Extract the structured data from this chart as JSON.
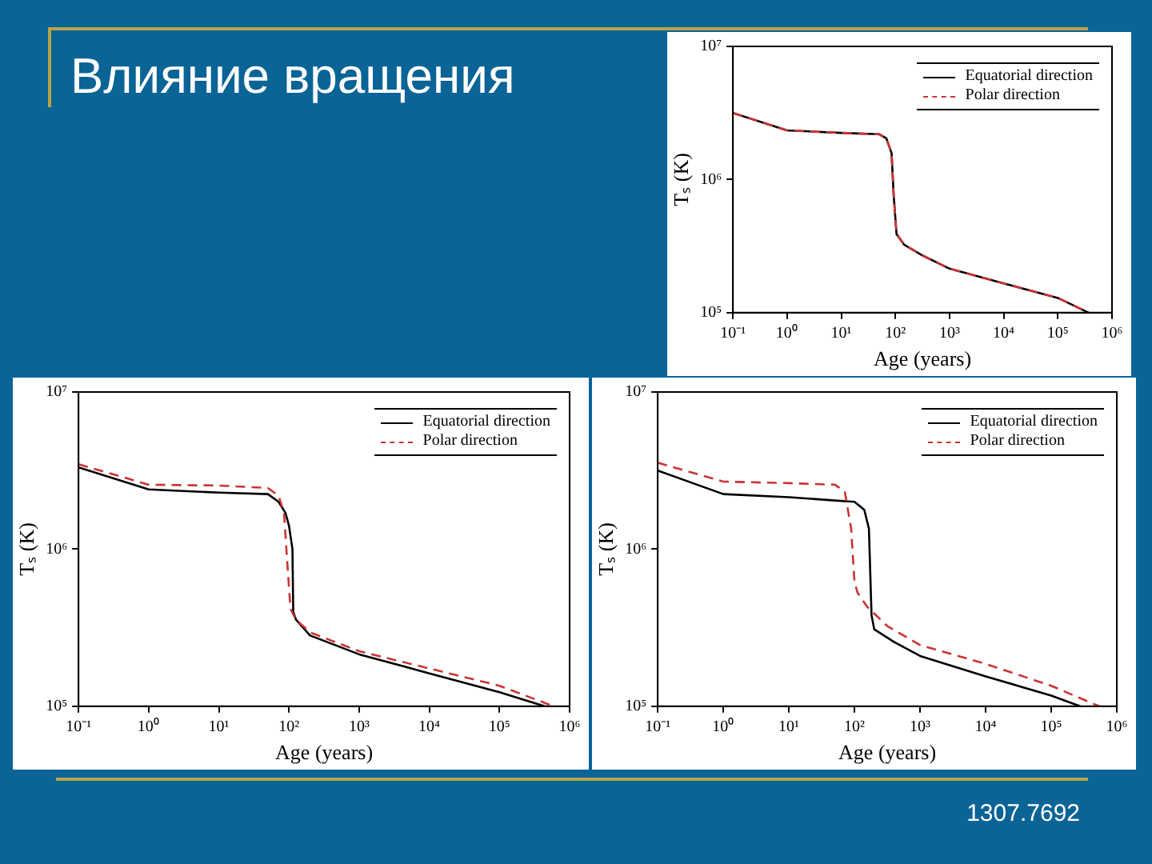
{
  "chart_data": [
    {
      "type": "line",
      "title": "Влияние вращения",
      "xlabel": "Age (years)",
      "ylabel": "Tₛ (K)",
      "log": "xy",
      "xlim": [
        0.1,
        1000000
      ],
      "ylim": [
        100000,
        10000000
      ],
      "xticks": [
        {
          "value": 0.1,
          "label": "10⁻¹"
        },
        {
          "value": 1,
          "label": "10⁰"
        },
        {
          "value": 10,
          "label": "10¹"
        },
        {
          "value": 100,
          "label": "10²"
        },
        {
          "value": 1000,
          "label": "10³"
        },
        {
          "value": 10000,
          "label": "10⁴"
        },
        {
          "value": 100000,
          "label": "10⁵"
        },
        {
          "value": 1000000,
          "label": "10⁶"
        }
      ],
      "yticks": [
        {
          "value": 100000,
          "label": "10⁵"
        },
        {
          "value": 1000000,
          "label": "10⁶"
        },
        {
          "value": 10000000,
          "label": "10⁷"
        }
      ],
      "grid": false,
      "legend": "top right",
      "series": [
        {
          "name": "Equatorial direction",
          "color": "#000000",
          "line_style": "solid",
          "x": [
            0.1,
            1,
            10,
            50,
            68,
            85,
            93,
            105,
            145,
            316,
            1000,
            10000,
            100000,
            370000
          ],
          "values": [
            3160000,
            2340000,
            2240000,
            2190000,
            2040000,
            1580000,
            759000,
            389000,
            324000,
            269000,
            214000,
            166000,
            129000,
            100000
          ]
        },
        {
          "name": "Polar direction",
          "color": "#cc3333",
          "line_style": "dashed",
          "x": [
            0.1,
            1,
            10,
            50,
            68,
            85,
            93,
            105,
            145,
            316,
            1000,
            10000,
            100000,
            370000
          ],
          "values": [
            3160000,
            2340000,
            2240000,
            2190000,
            2040000,
            1580000,
            759000,
            389000,
            324000,
            269000,
            214000,
            166000,
            129000,
            100000
          ]
        }
      ]
    },
    {
      "type": "line",
      "xlabel": "Age (years)",
      "ylabel": "Tₛ (K)",
      "log": "xy",
      "xlim": [
        0.1,
        1000000
      ],
      "ylim": [
        100000,
        10000000
      ],
      "xticks": [
        {
          "value": 0.1,
          "label": "10⁻¹"
        },
        {
          "value": 1,
          "label": "10⁰"
        },
        {
          "value": 10,
          "label": "10¹"
        },
        {
          "value": 100,
          "label": "10²"
        },
        {
          "value": 1000,
          "label": "10³"
        },
        {
          "value": 10000,
          "label": "10⁴"
        },
        {
          "value": 100000,
          "label": "10⁵"
        },
        {
          "value": 1000000,
          "label": "10⁶"
        }
      ],
      "yticks": [
        {
          "value": 100000,
          "label": "10⁵"
        },
        {
          "value": 1000000,
          "label": "10⁶"
        },
        {
          "value": 10000000,
          "label": "10⁷"
        }
      ],
      "grid": false,
      "legend": "top right",
      "series": [
        {
          "name": "Equatorial direction",
          "color": "#000000",
          "line_style": "solid",
          "x": [
            0.1,
            1,
            10,
            50,
            71,
            89,
            100,
            112,
            115,
            126,
            200,
            1000,
            10000,
            100000,
            440000
          ],
          "values": [
            3310000,
            2400000,
            2290000,
            2240000,
            2000000,
            1700000,
            1410000,
            1000000,
            398000,
            355000,
            282000,
            214000,
            162000,
            123000,
            100000
          ]
        },
        {
          "name": "Polar direction",
          "color": "#cc3333",
          "line_style": "dashed",
          "x": [
            0.1,
            1,
            10,
            50,
            71,
            85,
            93,
            105,
            126,
            200,
            1000,
            10000,
            100000,
            590000
          ],
          "values": [
            3470000,
            2570000,
            2540000,
            2450000,
            2190000,
            1700000,
            912000,
            417000,
            355000,
            295000,
            224000,
            174000,
            135000,
            100000
          ]
        }
      ]
    },
    {
      "type": "line",
      "xlabel": "Age (years)",
      "ylabel": "Tₛ (K)",
      "log": "xy",
      "xlim": [
        0.1,
        1000000
      ],
      "ylim": [
        100000,
        10000000
      ],
      "xticks": [
        {
          "value": 0.1,
          "label": "10⁻¹"
        },
        {
          "value": 1,
          "label": "10⁰"
        },
        {
          "value": 10,
          "label": "10¹"
        },
        {
          "value": 100,
          "label": "10²"
        },
        {
          "value": 1000,
          "label": "10³"
        },
        {
          "value": 10000,
          "label": "10⁴"
        },
        {
          "value": 100000,
          "label": "10⁵"
        },
        {
          "value": 1000000,
          "label": "10⁶"
        }
      ],
      "yticks": [
        {
          "value": 100000,
          "label": "10⁵"
        },
        {
          "value": 1000000,
          "label": "10⁶"
        },
        {
          "value": 10000000,
          "label": "10⁷"
        }
      ],
      "grid": false,
      "legend": "top right",
      "annotations": [
        "1307.7692"
      ],
      "series": [
        {
          "name": "Equatorial direction",
          "color": "#000000",
          "line_style": "solid",
          "x": [
            0.1,
            1,
            10,
            50,
            100,
            141,
            166,
            182,
            200,
            400,
            1000,
            10000,
            100000,
            275000
          ],
          "values": [
            3160000,
            2240000,
            2140000,
            2040000,
            2000000,
            1780000,
            1350000,
            380000,
            309000,
            257000,
            209000,
            155000,
            117000,
            100000
          ]
        },
        {
          "name": "Polar direction",
          "color": "#cc3333",
          "line_style": "dashed",
          "x": [
            0.1,
            1,
            10,
            50,
            71,
            89,
            100,
            112,
            158,
            316,
            1000,
            10000,
            100000,
            537000
          ],
          "values": [
            3550000,
            2690000,
            2630000,
            2570000,
            2340000,
            1350000,
            617000,
            525000,
            427000,
            324000,
            245000,
            186000,
            135000,
            100000
          ]
        }
      ]
    }
  ]
}
